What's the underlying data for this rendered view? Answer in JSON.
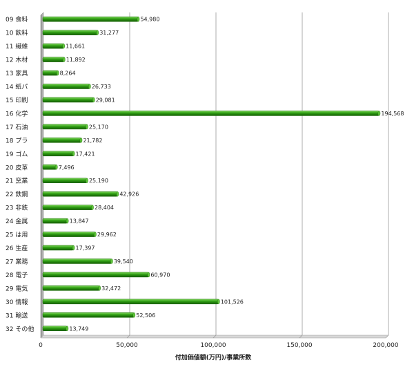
{
  "chart_data": {
    "type": "bar",
    "orientation": "horizontal",
    "title": "",
    "xlabel": "付加価値額(万円)/事業所数",
    "ylabel": "",
    "xlim": [
      0,
      200000
    ],
    "xticks": [
      0,
      50000,
      100000,
      150000,
      200000
    ],
    "xtick_labels": [
      "0",
      "50,000",
      "100,000",
      "150,000",
      "200,000"
    ],
    "grid": "vertical",
    "bar_color": "#2e9e12",
    "categories": [
      "09 食料",
      "10 飲料",
      "11 繊維",
      "12 木材",
      "13 家具",
      "14 紙パ",
      "15 印刷",
      "16 化学",
      "17 石油",
      "18 プラ",
      "19 ゴム",
      "20 皮革",
      "21 窯業",
      "22 鉄鋼",
      "23 非鉄",
      "24 金属",
      "25 は用",
      "26 生産",
      "27 業務",
      "28 電子",
      "29 電気",
      "30 情報",
      "31 輸送",
      "32 その他"
    ],
    "values": [
      54980,
      31277,
      11661,
      11892,
      8264,
      26733,
      29081,
      194568,
      25170,
      21782,
      17421,
      7496,
      25190,
      42926,
      28404,
      13847,
      29962,
      17397,
      39540,
      60970,
      32472,
      101526,
      52506,
      13749
    ],
    "value_labels": [
      "54,980",
      "31,277",
      "11,661",
      "11,892",
      "8,264",
      "26,733",
      "29,081",
      "194,568",
      "25,170",
      "21,782",
      "17,421",
      "7,496",
      "25,190",
      "42,926",
      "28,404",
      "13,847",
      "29,962",
      "17,397",
      "39,540",
      "60,970",
      "32,472",
      "101,526",
      "52,506",
      "13,749"
    ]
  }
}
